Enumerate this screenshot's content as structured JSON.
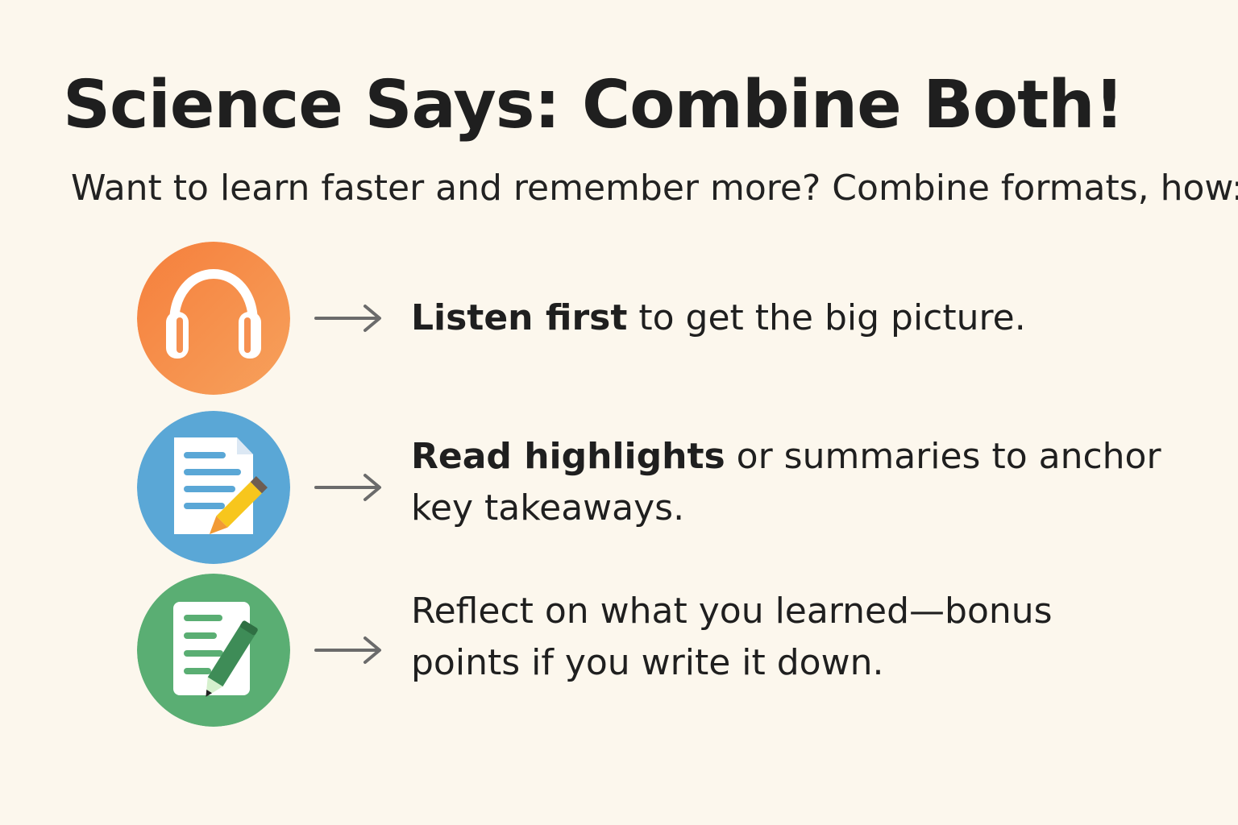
{
  "title": "Science Says: Combine Both!",
  "subtitle": "Want to learn faster and remember more? Combine formats, how:",
  "items": [
    {
      "icon": "headphones-icon",
      "color": "#f38b4c",
      "strong": "Listen first",
      "text": " to get the big picture."
    },
    {
      "icon": "document-pencil-icon",
      "color": "#5aa7d6",
      "strong": "Read highlights",
      "text": " or summaries to anchor key takeaways."
    },
    {
      "icon": "note-pencil-icon",
      "color": "#5aae73",
      "strong": "",
      "text": "Reflect on what you learned—bonus points if you write it down."
    }
  ],
  "colors": {
    "background": "#fcf7ed",
    "text": "#1f1f1f",
    "arrow": "#6b6b6b",
    "pencil_yellow": "#f7c61d",
    "pencil_orange": "#f29a35",
    "pencil_green": "#3e8c57"
  }
}
